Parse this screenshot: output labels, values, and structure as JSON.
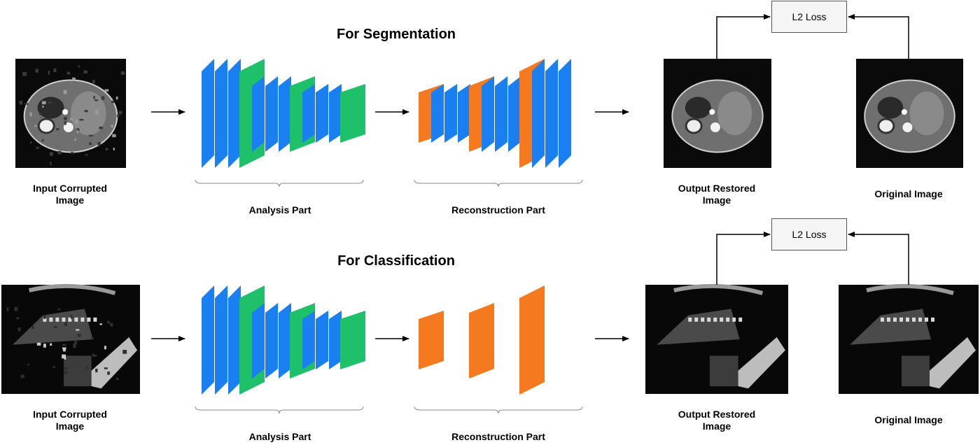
{
  "rows": [
    {
      "title": "For Segmentation",
      "input_label": "Input Corrupted\nImage",
      "analysis_label": "Analysis Part",
      "reconstruction_label": "Reconstruction Part",
      "output_label": "Output Restored\nImage",
      "original_label": "Original Image",
      "loss_label": "L2 Loss",
      "image_type": "ct-abdomen",
      "reconstruction_filled": true
    },
    {
      "title": "For Classification",
      "input_label": "Input Corrupted\nImage",
      "analysis_label": "Analysis Part",
      "reconstruction_label": "Reconstruction Part",
      "output_label": "Output Restored\nImage",
      "original_label": "Original Image",
      "loss_label": "L2 Loss",
      "image_type": "ultrasound",
      "reconstruction_filled": false
    }
  ],
  "colors": {
    "conv": "#1a7ff0",
    "pool": "#1fc06a",
    "upconv": "#f57a1f",
    "arrow": "#000000"
  }
}
